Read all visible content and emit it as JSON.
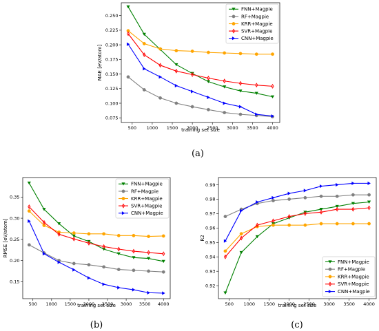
{
  "chart_data": [
    {
      "type": "line",
      "xlabel": "training set size",
      "ylabel": "MAE [eV/atom]",
      "caption": "(a)",
      "xticks": [
        500,
        1000,
        1500,
        2000,
        2500,
        3000,
        3500,
        4000
      ],
      "yticks": [
        0.075,
        0.1,
        0.125,
        0.15,
        0.175,
        0.2,
        0.225,
        0.25
      ],
      "ytick_labels": [
        "0.075",
        "0.100",
        "0.125",
        "0.150",
        "0.175",
        "0.200",
        "0.225",
        "0.250"
      ],
      "xlim": [
        228,
        4180
      ],
      "ylim": [
        0.067,
        0.272
      ],
      "legend": "top-right",
      "grid": false,
      "x": [
        400,
        800,
        1200,
        1600,
        2000,
        2400,
        2800,
        3200,
        3600,
        4000
      ],
      "series": [
        {
          "name": "FNN+Magpie",
          "color": "#008000",
          "marker": "triangle-down",
          "values": [
            0.265,
            0.218,
            0.192,
            0.166,
            0.151,
            0.137,
            0.128,
            0.121,
            0.117,
            0.111
          ]
        },
        {
          "name": "RF+Magpie",
          "color": "#808080",
          "marker": "circle",
          "values": [
            0.145,
            0.123,
            0.109,
            0.1,
            0.094,
            0.089,
            0.084,
            0.081,
            0.079,
            0.077
          ]
        },
        {
          "name": "KRR+Magpie",
          "color": "#FFA500",
          "marker": "circle",
          "values": [
            0.224,
            0.202,
            0.193,
            0.19,
            0.189,
            0.187,
            0.186,
            0.185,
            0.184,
            0.184
          ]
        },
        {
          "name": "SVR+Magpie",
          "color": "#FF0000",
          "marker": "thin-diamond",
          "values": [
            0.219,
            0.183,
            0.165,
            0.155,
            0.149,
            0.143,
            0.138,
            0.134,
            0.131,
            0.129
          ]
        },
        {
          "name": "CNN+Magpie",
          "color": "#0000FF",
          "marker": "triangle-right",
          "values": [
            0.201,
            0.159,
            0.145,
            0.13,
            0.12,
            0.11,
            0.1,
            0.094,
            0.081,
            0.078
          ]
        }
      ]
    },
    {
      "type": "line",
      "xlabel": "training set size",
      "ylabel": "RMSE [eV/atom]",
      "caption": "(b)",
      "xticks": [
        500,
        1000,
        1500,
        2000,
        2500,
        3000,
        3500,
        4000
      ],
      "yticks": [
        0.15,
        0.2,
        0.25,
        0.3,
        0.35
      ],
      "ytick_labels": [
        "0.15",
        "0.20",
        "0.25",
        "0.30",
        "0.35"
      ],
      "xlim": [
        228,
        4180
      ],
      "ylim": [
        0.11,
        0.396
      ],
      "legend": "top-right",
      "grid": false,
      "x": [
        400,
        800,
        1200,
        1600,
        2000,
        2400,
        2800,
        3200,
        3600,
        4000
      ],
      "series": [
        {
          "name": "FNN+Magpie",
          "color": "#008000",
          "marker": "triangle-down",
          "values": [
            0.383,
            0.321,
            0.287,
            0.258,
            0.245,
            0.227,
            0.216,
            0.207,
            0.205,
            0.198
          ]
        },
        {
          "name": "RF+Magpie",
          "color": "#808080",
          "marker": "circle",
          "values": [
            0.237,
            0.218,
            0.2,
            0.193,
            0.19,
            0.185,
            0.179,
            0.177,
            0.175,
            0.173
          ]
        },
        {
          "name": "KRR+Magpie",
          "color": "#FFA500",
          "marker": "circle",
          "values": [
            0.317,
            0.283,
            0.267,
            0.265,
            0.263,
            0.263,
            0.259,
            0.259,
            0.257,
            0.258
          ]
        },
        {
          "name": "SVR+Magpie",
          "color": "#FF0000",
          "marker": "thin-diamond",
          "values": [
            0.327,
            0.29,
            0.262,
            0.251,
            0.241,
            0.233,
            0.227,
            0.222,
            0.219,
            0.216
          ]
        },
        {
          "name": "CNN+Magpie",
          "color": "#0000FF",
          "marker": "triangle-right",
          "values": [
            0.293,
            0.216,
            0.196,
            0.178,
            0.159,
            0.144,
            0.136,
            0.131,
            0.124,
            0.123
          ]
        }
      ]
    },
    {
      "type": "line",
      "xlabel": "training set size",
      "ylabel": "R2",
      "caption": "(c)",
      "xticks": [
        500,
        1000,
        1500,
        2000,
        2500,
        3000,
        3500,
        4000
      ],
      "yticks": [
        0.92,
        0.93,
        0.94,
        0.95,
        0.96,
        0.97,
        0.98,
        0.99
      ],
      "ytick_labels": [
        "0.92",
        "0.93",
        "0.94",
        "0.95",
        "0.96",
        "0.97",
        "0.98",
        "0.99"
      ],
      "xlim": [
        228,
        4180
      ],
      "ylim": [
        0.911,
        0.995
      ],
      "legend": "lower-right",
      "grid": false,
      "x": [
        400,
        800,
        1200,
        1600,
        2000,
        2400,
        2800,
        3200,
        3600,
        4000
      ],
      "series": [
        {
          "name": "FNN+Magpie",
          "color": "#008000",
          "marker": "triangle-down",
          "values": [
            0.915,
            0.943,
            0.954,
            0.963,
            0.967,
            0.971,
            0.973,
            0.975,
            0.977,
            0.978
          ]
        },
        {
          "name": "RF+Magpie",
          "color": "#808080",
          "marker": "circle",
          "values": [
            0.968,
            0.973,
            0.977,
            0.979,
            0.98,
            0.981,
            0.982,
            0.982,
            0.983,
            0.983
          ]
        },
        {
          "name": "KRR+Magpie",
          "color": "#FFA500",
          "marker": "circle",
          "values": [
            0.944,
            0.956,
            0.961,
            0.962,
            0.962,
            0.962,
            0.963,
            0.963,
            0.963,
            0.963
          ]
        },
        {
          "name": "SVR+Magpie",
          "color": "#FF0000",
          "marker": "thin-diamond",
          "values": [
            0.94,
            0.953,
            0.962,
            0.965,
            0.968,
            0.97,
            0.971,
            0.973,
            0.973,
            0.974
          ]
        },
        {
          "name": "CNN+Magpie",
          "color": "#0000FF",
          "marker": "triangle-right",
          "values": [
            0.951,
            0.972,
            0.978,
            0.981,
            0.984,
            0.986,
            0.989,
            0.99,
            0.991,
            0.991
          ]
        }
      ]
    }
  ]
}
